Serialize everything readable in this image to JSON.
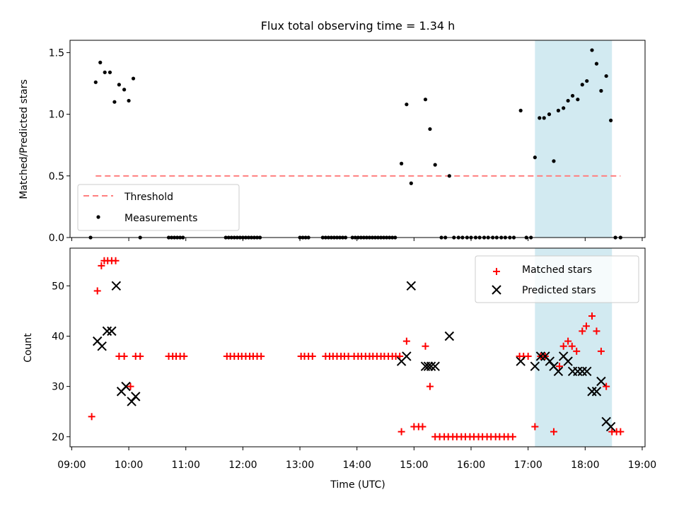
{
  "figure": {
    "title": "Flux total observing time = 1.34 h"
  },
  "chart_data": [
    {
      "type": "scatter",
      "panel": "top",
      "ylabel": "Matched/Predicted stars",
      "xlabel": "",
      "ylim": [
        0,
        1.6
      ],
      "yticks": [
        0.0,
        0.5,
        1.0,
        1.5
      ],
      "ytick_labels": [
        "0.0",
        "0.5",
        "1.0",
        "1.5"
      ],
      "legend_position": "lower-left",
      "highlight_span": {
        "x0": 17.12,
        "x1": 18.47,
        "color": "#add8e6"
      },
      "threshold": {
        "name": "Threshold",
        "y": 0.5,
        "x0": 9.42,
        "x1": 18.62,
        "color": "#ff7f7f",
        "style": "dashed"
      },
      "series": [
        {
          "name": "Measurements",
          "marker": "dot",
          "color": "#000000",
          "points": [
            [
              9.33,
              0.0
            ],
            [
              9.42,
              1.26
            ],
            [
              9.5,
              1.42
            ],
            [
              9.58,
              1.34
            ],
            [
              9.67,
              1.34
            ],
            [
              9.75,
              1.1
            ],
            [
              9.83,
              1.24
            ],
            [
              9.92,
              1.2
            ],
            [
              10.0,
              1.11
            ],
            [
              10.08,
              1.29
            ],
            [
              10.2,
              0.0
            ],
            [
              10.7,
              0.0
            ],
            [
              10.75,
              0.0
            ],
            [
              10.8,
              0.0
            ],
            [
              10.85,
              0.0
            ],
            [
              10.9,
              0.0
            ],
            [
              10.95,
              0.0
            ],
            [
              11.7,
              0.0
            ],
            [
              11.75,
              0.0
            ],
            [
              11.8,
              0.0
            ],
            [
              11.85,
              0.0
            ],
            [
              11.9,
              0.0
            ],
            [
              11.95,
              0.0
            ],
            [
              12.0,
              0.0
            ],
            [
              12.05,
              0.0
            ],
            [
              12.1,
              0.0
            ],
            [
              12.15,
              0.0
            ],
            [
              12.2,
              0.0
            ],
            [
              12.25,
              0.0
            ],
            [
              12.3,
              0.0
            ],
            [
              13.0,
              0.0
            ],
            [
              13.05,
              0.0
            ],
            [
              13.1,
              0.0
            ],
            [
              13.15,
              0.0
            ],
            [
              13.4,
              0.0
            ],
            [
              13.45,
              0.0
            ],
            [
              13.5,
              0.0
            ],
            [
              13.55,
              0.0
            ],
            [
              13.6,
              0.0
            ],
            [
              13.65,
              0.0
            ],
            [
              13.7,
              0.0
            ],
            [
              13.75,
              0.0
            ],
            [
              13.8,
              0.0
            ],
            [
              13.92,
              0.0
            ],
            [
              13.97,
              0.0
            ],
            [
              14.02,
              0.0
            ],
            [
              14.07,
              0.0
            ],
            [
              14.12,
              0.0
            ],
            [
              14.17,
              0.0
            ],
            [
              14.22,
              0.0
            ],
            [
              14.27,
              0.0
            ],
            [
              14.32,
              0.0
            ],
            [
              14.37,
              0.0
            ],
            [
              14.42,
              0.0
            ],
            [
              14.47,
              0.0
            ],
            [
              14.52,
              0.0
            ],
            [
              14.57,
              0.0
            ],
            [
              14.62,
              0.0
            ],
            [
              14.67,
              0.0
            ],
            [
              14.78,
              0.6
            ],
            [
              14.87,
              1.08
            ],
            [
              14.95,
              0.44
            ],
            [
              15.2,
              1.12
            ],
            [
              15.28,
              0.88
            ],
            [
              15.37,
              0.59
            ],
            [
              15.48,
              0.0
            ],
            [
              15.55,
              0.0
            ],
            [
              15.62,
              0.5
            ],
            [
              15.7,
              0.0
            ],
            [
              15.78,
              0.0
            ],
            [
              15.85,
              0.0
            ],
            [
              15.93,
              0.0
            ],
            [
              16.0,
              0.0
            ],
            [
              16.08,
              0.0
            ],
            [
              16.15,
              0.0
            ],
            [
              16.23,
              0.0
            ],
            [
              16.3,
              0.0
            ],
            [
              16.38,
              0.0
            ],
            [
              16.45,
              0.0
            ],
            [
              16.53,
              0.0
            ],
            [
              16.6,
              0.0
            ],
            [
              16.68,
              0.0
            ],
            [
              16.75,
              0.0
            ],
            [
              16.87,
              1.03
            ],
            [
              16.97,
              0.0
            ],
            [
              17.05,
              0.0
            ],
            [
              17.12,
              0.65
            ],
            [
              17.2,
              0.97
            ],
            [
              17.28,
              0.97
            ],
            [
              17.37,
              1.0
            ],
            [
              17.45,
              0.62
            ],
            [
              17.53,
              1.03
            ],
            [
              17.62,
              1.05
            ],
            [
              17.7,
              1.11
            ],
            [
              17.78,
              1.15
            ],
            [
              17.87,
              1.12
            ],
            [
              17.95,
              1.24
            ],
            [
              18.03,
              1.27
            ],
            [
              18.12,
              1.52
            ],
            [
              18.2,
              1.41
            ],
            [
              18.28,
              1.19
            ],
            [
              18.37,
              1.31
            ],
            [
              18.45,
              0.95
            ],
            [
              18.53,
              0.0
            ],
            [
              18.62,
              0.0
            ]
          ]
        }
      ]
    },
    {
      "type": "scatter",
      "panel": "bottom",
      "ylabel": "Count",
      "xlabel": "Time (UTC)",
      "xlim": [
        8.97,
        19.05
      ],
      "ylim": [
        18,
        57.5
      ],
      "xticks": [
        9,
        10,
        11,
        12,
        13,
        14,
        15,
        16,
        17,
        18,
        19
      ],
      "xtick_labels": [
        "09:00",
        "10:00",
        "11:00",
        "12:00",
        "13:00",
        "14:00",
        "15:00",
        "16:00",
        "17:00",
        "18:00",
        "19:00"
      ],
      "yticks": [
        20,
        30,
        40,
        50
      ],
      "ytick_labels": [
        "20",
        "30",
        "40",
        "50"
      ],
      "legend_position": "top-right",
      "highlight_span": {
        "x0": 17.12,
        "x1": 18.47,
        "color": "#add8e6"
      },
      "series": [
        {
          "name": "Matched stars",
          "marker": "plus",
          "color": "#ff0000",
          "points": [
            [
              9.35,
              24
            ],
            [
              9.45,
              49
            ],
            [
              9.52,
              54
            ],
            [
              9.57,
              55
            ],
            [
              9.63,
              55
            ],
            [
              9.7,
              55
            ],
            [
              9.77,
              55
            ],
            [
              9.83,
              36
            ],
            [
              9.92,
              36
            ],
            [
              10.03,
              30
            ],
            [
              10.12,
              36
            ],
            [
              10.2,
              36
            ],
            [
              10.7,
              36
            ],
            [
              10.77,
              36
            ],
            [
              10.83,
              36
            ],
            [
              10.9,
              36
            ],
            [
              10.97,
              36
            ],
            [
              11.72,
              36
            ],
            [
              11.78,
              36
            ],
            [
              11.85,
              36
            ],
            [
              11.92,
              36
            ],
            [
              11.98,
              36
            ],
            [
              12.05,
              36
            ],
            [
              12.12,
              36
            ],
            [
              12.18,
              36
            ],
            [
              12.25,
              36
            ],
            [
              12.32,
              36
            ],
            [
              13.02,
              36
            ],
            [
              13.08,
              36
            ],
            [
              13.15,
              36
            ],
            [
              13.22,
              36
            ],
            [
              13.45,
              36
            ],
            [
              13.52,
              36
            ],
            [
              13.58,
              36
            ],
            [
              13.65,
              36
            ],
            [
              13.72,
              36
            ],
            [
              13.78,
              36
            ],
            [
              13.85,
              36
            ],
            [
              13.95,
              36
            ],
            [
              14.02,
              36
            ],
            [
              14.08,
              36
            ],
            [
              14.15,
              36
            ],
            [
              14.22,
              36
            ],
            [
              14.28,
              36
            ],
            [
              14.35,
              36
            ],
            [
              14.42,
              36
            ],
            [
              14.48,
              36
            ],
            [
              14.55,
              36
            ],
            [
              14.62,
              36
            ],
            [
              14.68,
              36
            ],
            [
              14.75,
              36
            ],
            [
              14.78,
              21
            ],
            [
              14.87,
              39
            ],
            [
              15.0,
              22
            ],
            [
              15.08,
              22
            ],
            [
              15.15,
              22
            ],
            [
              15.2,
              38
            ],
            [
              15.28,
              30
            ],
            [
              15.37,
              20
            ],
            [
              15.45,
              20
            ],
            [
              15.53,
              20
            ],
            [
              15.6,
              20
            ],
            [
              15.68,
              20
            ],
            [
              15.75,
              20
            ],
            [
              15.83,
              20
            ],
            [
              15.9,
              20
            ],
            [
              15.98,
              20
            ],
            [
              16.05,
              20
            ],
            [
              16.13,
              20
            ],
            [
              16.2,
              20
            ],
            [
              16.28,
              20
            ],
            [
              16.35,
              20
            ],
            [
              16.43,
              20
            ],
            [
              16.5,
              20
            ],
            [
              16.58,
              20
            ],
            [
              16.65,
              20
            ],
            [
              16.73,
              20
            ],
            [
              16.85,
              36
            ],
            [
              16.92,
              36
            ],
            [
              17.0,
              36
            ],
            [
              17.12,
              22
            ],
            [
              17.22,
              36
            ],
            [
              17.3,
              36
            ],
            [
              17.45,
              21
            ],
            [
              17.55,
              34
            ],
            [
              17.62,
              38
            ],
            [
              17.7,
              39
            ],
            [
              17.77,
              38
            ],
            [
              17.85,
              37
            ],
            [
              17.95,
              41
            ],
            [
              18.02,
              42
            ],
            [
              18.12,
              44
            ],
            [
              18.2,
              41
            ],
            [
              18.28,
              37
            ],
            [
              18.37,
              30
            ],
            [
              18.47,
              21
            ],
            [
              18.55,
              21
            ],
            [
              18.62,
              21
            ]
          ]
        },
        {
          "name": "Predicted stars",
          "marker": "x",
          "color": "#000000",
          "points": [
            [
              9.45,
              39
            ],
            [
              9.53,
              38
            ],
            [
              9.62,
              41
            ],
            [
              9.7,
              41
            ],
            [
              9.78,
              50
            ],
            [
              9.87,
              29
            ],
            [
              9.95,
              30
            ],
            [
              10.05,
              27
            ],
            [
              10.12,
              28
            ],
            [
              14.78,
              35
            ],
            [
              14.87,
              36
            ],
            [
              14.95,
              50
            ],
            [
              15.2,
              34
            ],
            [
              15.25,
              34
            ],
            [
              15.3,
              34
            ],
            [
              15.37,
              34
            ],
            [
              15.62,
              40
            ],
            [
              16.87,
              35
            ],
            [
              17.12,
              34
            ],
            [
              17.22,
              36
            ],
            [
              17.3,
              36
            ],
            [
              17.38,
              35
            ],
            [
              17.45,
              34
            ],
            [
              17.53,
              33
            ],
            [
              17.62,
              36
            ],
            [
              17.7,
              35
            ],
            [
              17.78,
              33
            ],
            [
              17.87,
              33
            ],
            [
              17.95,
              33
            ],
            [
              18.03,
              33
            ],
            [
              18.12,
              29
            ],
            [
              18.2,
              29
            ],
            [
              18.28,
              31
            ],
            [
              18.37,
              23
            ],
            [
              18.45,
              22
            ]
          ]
        }
      ]
    }
  ]
}
